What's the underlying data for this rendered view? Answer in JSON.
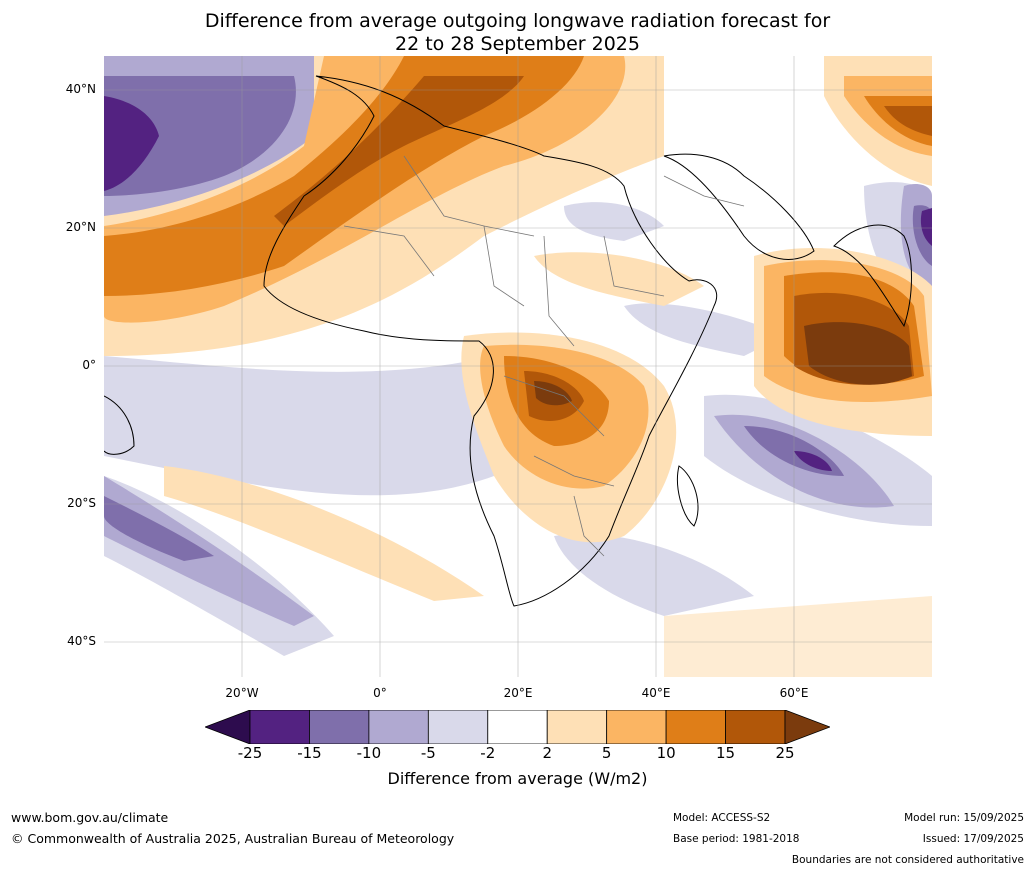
{
  "title": {
    "line1": "Difference from average outgoing longwave radiation forecast for",
    "line2": "22 to 28 September 2025"
  },
  "axes": {
    "lat_labels": [
      "40°N",
      "20°N",
      "0°",
      "20°S",
      "40°S"
    ],
    "lon_labels": [
      "20°W",
      "0°",
      "20°E",
      "40°E",
      "60°E"
    ]
  },
  "colorbar": {
    "label": "Difference from average (W/m2)",
    "ticks": [
      "-25",
      "-15",
      "-10",
      "-5",
      "-2",
      "2",
      "5",
      "10",
      "15",
      "25"
    ],
    "colors": [
      "#2d0c4e",
      "#532281",
      "#7f6fab",
      "#b0a9d1",
      "#d9d9ea",
      "#ffffff",
      "#fee0b6",
      "#fbb563",
      "#df7e18",
      "#b15709",
      "#7b3b0d"
    ]
  },
  "footer": {
    "website": "www.bom.gov.au/climate",
    "copyright": "© Commonwealth of Australia 2025, Australian Bureau of Meteorology",
    "model": "Model: ACCESS-S2",
    "base_period": "Base period: 1981-2018",
    "model_run": "Model run: 15/09/2025",
    "issued": "Issued: 17/09/2025",
    "disclaimer": "Boundaries are not considered authoritative"
  }
}
